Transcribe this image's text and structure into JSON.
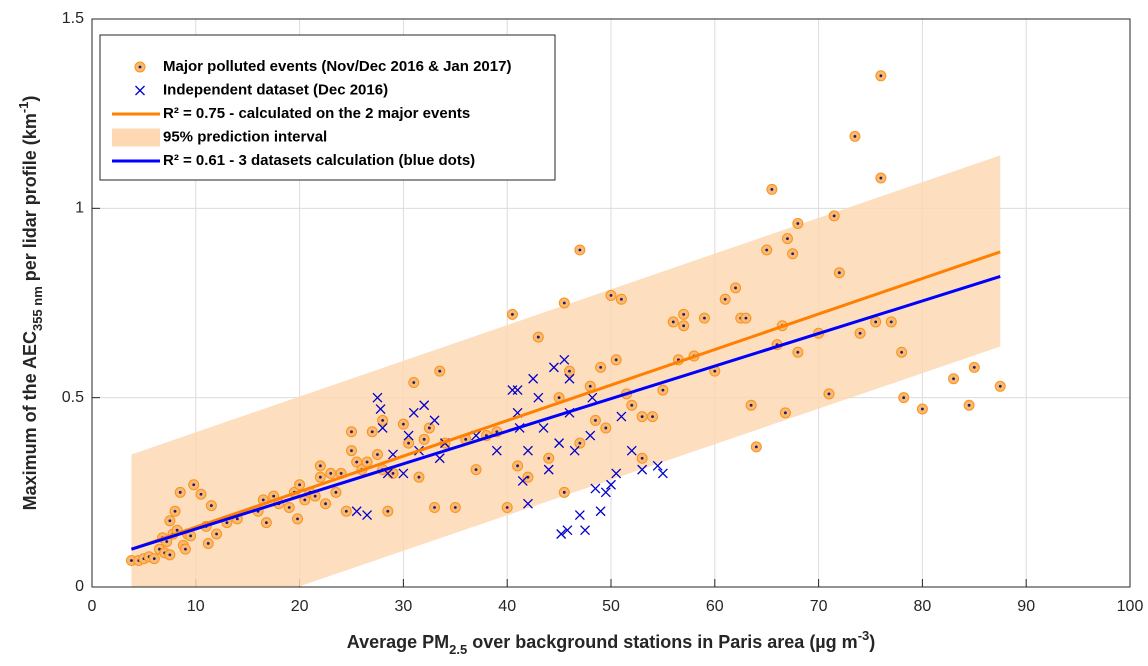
{
  "chart_data": {
    "type": "scatter",
    "xlabel": [
      "Average PM",
      "2.5",
      " over background stations in Paris area (µg m",
      "-3",
      ")"
    ],
    "ylabel": [
      "Maximum of the AEC",
      "355 nm",
      " per lidar profile (km",
      "-1",
      ")"
    ],
    "xlim": [
      0,
      100
    ],
    "ylim": [
      0,
      1.5
    ],
    "xticks": [
      0,
      10,
      20,
      30,
      40,
      50,
      60,
      70,
      80,
      90,
      100
    ],
    "yticks": [
      0,
      0.5,
      1,
      1.5
    ],
    "grid": true,
    "legend": "upper-left",
    "series": [
      {
        "name": "Major polluted events (Nov/Dec 2016 & Jan 2017)",
        "kind": "points",
        "marker": "o",
        "color": "#f7941d",
        "x": [
          3.8,
          4.5,
          5,
          5.5,
          6,
          6.5,
          6.8,
          7,
          7.2,
          7.5,
          7.5,
          7.8,
          8,
          8.2,
          8.5,
          8.8,
          9,
          9.2,
          9.5,
          9.8,
          10.5,
          11,
          11.2,
          11.5,
          12,
          13,
          14,
          16,
          16.5,
          16.8,
          17.5,
          18,
          19,
          19.5,
          19.8,
          20,
          20.5,
          21,
          21.5,
          22,
          22,
          22.5,
          23,
          23.5,
          24,
          24.5,
          25,
          25,
          25.5,
          26,
          26.5,
          27,
          27.5,
          28,
          28.5,
          28,
          29,
          30,
          30.5,
          31,
          31.5,
          32,
          32.5,
          33,
          33.5,
          34,
          35,
          36,
          37,
          38,
          39,
          40,
          40.5,
          41,
          42,
          43,
          44,
          45,
          45.5,
          46,
          47,
          48,
          48.5,
          49,
          49.5,
          50,
          50.5,
          51,
          51.5,
          52,
          53,
          54,
          55,
          56,
          56.5,
          57,
          58,
          59,
          60,
          61,
          62,
          62.5,
          63,
          64,
          65,
          65.5,
          66,
          66.5,
          67,
          67.5,
          68,
          68,
          70,
          71,
          71.5,
          72,
          73.5,
          74,
          75.5,
          76,
          76,
          77,
          78,
          78.2,
          80,
          83,
          84.5,
          85,
          87.5,
          63.5,
          66.8,
          53,
          57,
          45.5,
          47
        ],
        "values": [
          0.07,
          0.07,
          0.075,
          0.08,
          0.075,
          0.1,
          0.13,
          0.09,
          0.12,
          0.175,
          0.085,
          0.14,
          0.2,
          0.15,
          0.25,
          0.11,
          0.1,
          0.14,
          0.135,
          0.27,
          0.245,
          0.16,
          0.115,
          0.215,
          0.14,
          0.17,
          0.18,
          0.2,
          0.23,
          0.17,
          0.24,
          0.22,
          0.21,
          0.25,
          0.18,
          0.27,
          0.23,
          0.25,
          0.24,
          0.32,
          0.29,
          0.22,
          0.3,
          0.25,
          0.3,
          0.2,
          0.36,
          0.41,
          0.33,
          0.31,
          0.33,
          0.41,
          0.35,
          0.44,
          0.2,
          0.31,
          0.3,
          0.43,
          0.38,
          0.54,
          0.29,
          0.39,
          0.42,
          0.21,
          0.57,
          0.38,
          0.21,
          0.39,
          0.31,
          0.4,
          0.41,
          0.21,
          0.72,
          0.32,
          0.29,
          0.66,
          0.34,
          0.5,
          0.75,
          0.57,
          0.89,
          0.53,
          0.44,
          0.58,
          0.42,
          0.77,
          0.6,
          0.76,
          0.51,
          0.48,
          0.45,
          0.45,
          0.52,
          0.7,
          0.6,
          0.69,
          0.61,
          0.71,
          0.57,
          0.76,
          0.79,
          0.71,
          0.71,
          0.37,
          0.89,
          1.05,
          0.64,
          0.69,
          0.92,
          0.88,
          0.96,
          0.62,
          0.67,
          0.51,
          0.98,
          0.83,
          1.19,
          0.67,
          0.7,
          1.35,
          1.08,
          0.7,
          0.62,
          0.5,
          0.47,
          0.55,
          0.48,
          0.58,
          0.53,
          0.48,
          0.46,
          0.34,
          0.72,
          0.25,
          0.38
        ]
      },
      {
        "name": "Independent dataset (Dec 2016)",
        "kind": "points",
        "marker": "x",
        "color": "#0000cc",
        "x": [
          25.5,
          26.5,
          27.5,
          27.8,
          28,
          28.5,
          29,
          30,
          30.5,
          31,
          31.5,
          32,
          33,
          33.5,
          34,
          37,
          39,
          40.5,
          41,
          41.2,
          41.5,
          42,
          42.5,
          43,
          43.5,
          44,
          44.5,
          45,
          45.2,
          45.5,
          45.8,
          46,
          46.5,
          47,
          47.5,
          48,
          48.5,
          49,
          49.5,
          50,
          50.5,
          51,
          52,
          53,
          54.5,
          55,
          46,
          42,
          48.2,
          41
        ],
        "values": [
          0.2,
          0.19,
          0.5,
          0.47,
          0.42,
          0.3,
          0.35,
          0.3,
          0.4,
          0.46,
          0.36,
          0.48,
          0.44,
          0.34,
          0.38,
          0.4,
          0.36,
          0.52,
          0.46,
          0.42,
          0.28,
          0.36,
          0.55,
          0.5,
          0.42,
          0.31,
          0.58,
          0.38,
          0.14,
          0.6,
          0.15,
          0.55,
          0.36,
          0.19,
          0.15,
          0.4,
          0.26,
          0.2,
          0.25,
          0.27,
          0.3,
          0.45,
          0.36,
          0.31,
          0.32,
          0.3,
          0.46,
          0.22,
          0.5,
          0.52
        ]
      },
      {
        "name": "R² = 0.75 - calculated on the 2 major events",
        "kind": "line",
        "color": "#ff7f00",
        "x": [
          3.8,
          87.5
        ],
        "values": [
          0.1,
          0.885
        ]
      },
      {
        "name": "95% prediction interval",
        "kind": "band",
        "color": "#fdd8b3",
        "x": [
          3.8,
          87.5
        ],
        "lower": [
          -0.15,
          0.635
        ],
        "upper": [
          0.35,
          1.14
        ]
      },
      {
        "name": "R² = 0.61 - 3 datasets calculation (blue dots)",
        "kind": "line",
        "color": "#0000ff",
        "x": [
          3.8,
          87.5
        ],
        "values": [
          0.1,
          0.82
        ]
      }
    ]
  }
}
